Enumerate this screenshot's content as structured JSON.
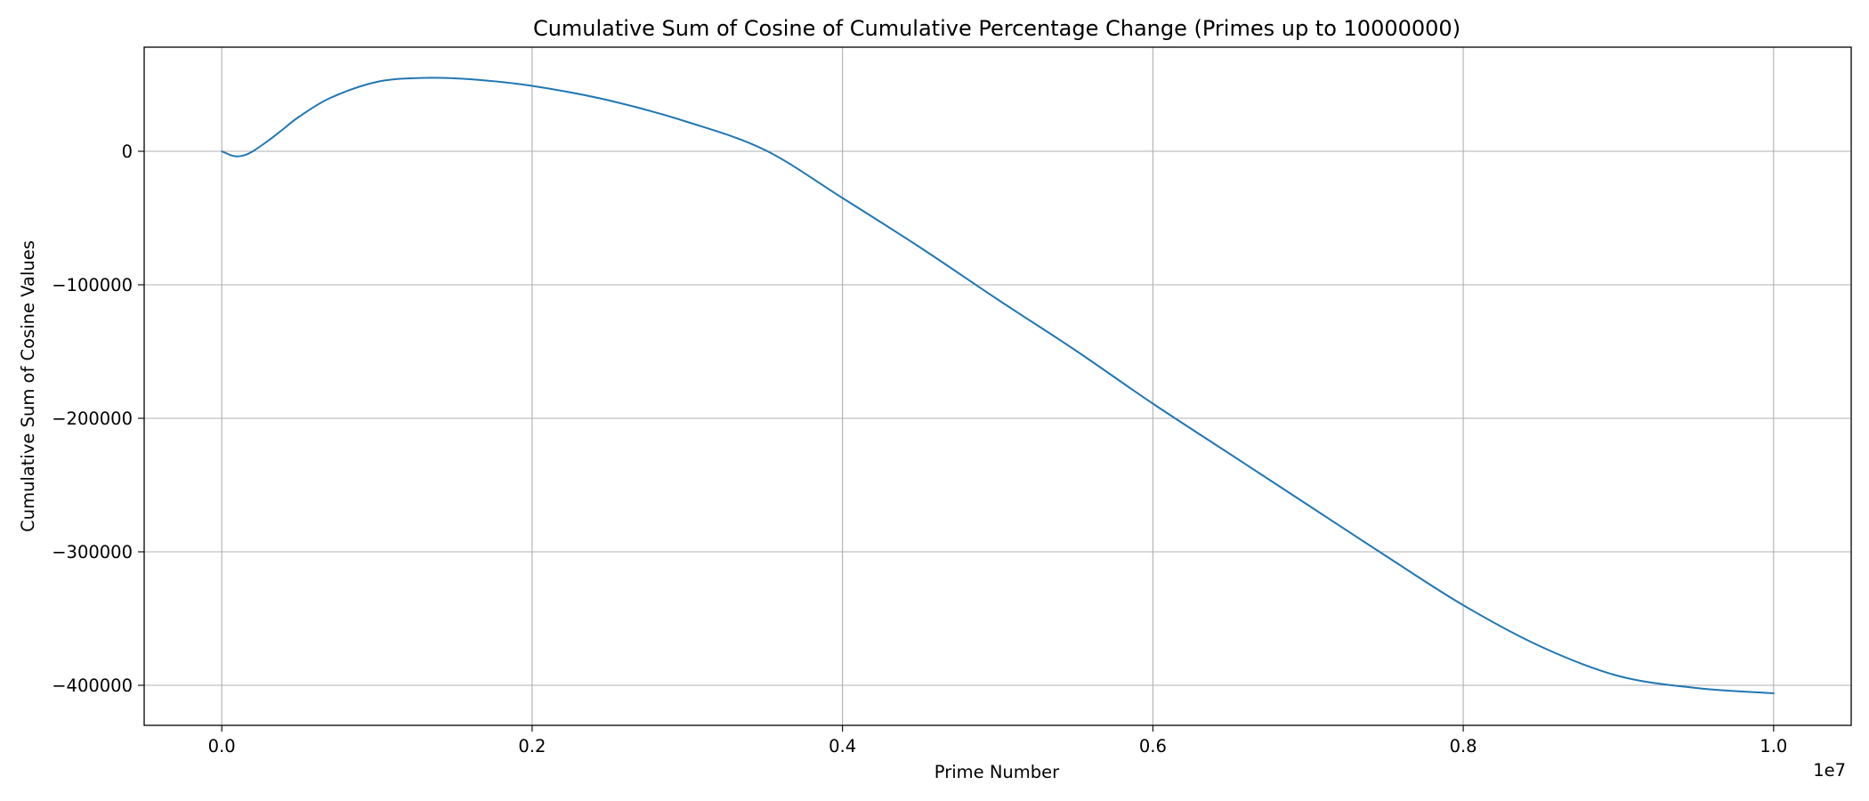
{
  "chart_data": {
    "type": "line",
    "title": "Cumulative Sum of Cosine of Cumulative Percentage Change (Primes up to 10000000)",
    "xlabel": "Prime Number",
    "ylabel": "Cumulative Sum of Cosine Values",
    "x_offset_label": "1e7",
    "xlim": [
      -0.05,
      1.05
    ],
    "ylim": [
      -430000,
      78000
    ],
    "x_ticks": [
      0.0,
      0.2,
      0.4,
      0.6,
      0.8,
      1.0
    ],
    "x_tick_labels": [
      "0.0",
      "0.2",
      "0.4",
      "0.6",
      "0.8",
      "1.0"
    ],
    "y_ticks": [
      0,
      -100000,
      -200000,
      -300000,
      -400000
    ],
    "y_tick_labels": [
      "0",
      "−100000",
      "−200000",
      "−300000",
      "−400000"
    ],
    "grid": true,
    "series": [
      {
        "color": "#1f77b4",
        "x": [
          0.0,
          0.003,
          0.006,
          0.01,
          0.015,
          0.02,
          0.03,
          0.04,
          0.05,
          0.07,
          0.1,
          0.13,
          0.16,
          0.2,
          0.25,
          0.3,
          0.35,
          0.4,
          0.45,
          0.5,
          0.55,
          0.6,
          0.65,
          0.7,
          0.75,
          0.8,
          0.85,
          0.9,
          0.95,
          1.0
        ],
        "y": [
          0,
          -1500,
          -3000,
          -3800,
          -2800,
          0,
          8000,
          17000,
          26000,
          40000,
          52000,
          55000,
          54000,
          49000,
          38000,
          22000,
          1000,
          -35000,
          -72000,
          -111000,
          -149000,
          -189000,
          -227000,
          -265000,
          -303000,
          -340000,
          -371000,
          -393000,
          -402000,
          -406000
        ]
      }
    ]
  }
}
